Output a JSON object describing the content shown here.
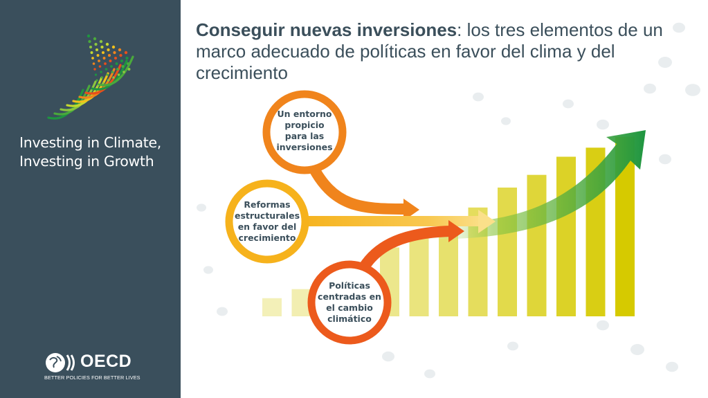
{
  "brand": {
    "line1": "Investing in Climate,",
    "line2": "Investing in Growth"
  },
  "oecd": {
    "name": "OECD",
    "tagline": "BETTER POLICIES FOR BETTER LIVES"
  },
  "title": {
    "bold": "Conseguir nuevas inversiones",
    "rest": ": los tres elementos de un marco adecuado de políticas en favor del clima y del crecimiento"
  },
  "diagram": {
    "elements": [
      {
        "id": "entorno",
        "label": "Un entorno propicio para las inversiones",
        "color": "#f0841c"
      },
      {
        "id": "reformas",
        "label": "Reformas estructurales en favor del crecimiento",
        "color": "#f6b21c"
      },
      {
        "id": "politicas",
        "label": "Políticas centradas en el cambio climático",
        "color": "#ec5a1c"
      }
    ],
    "bar_levels": [
      0.1,
      0.15,
      0.25,
      0.3,
      0.38,
      0.43,
      0.52,
      0.6,
      0.71,
      0.78,
      0.88,
      0.93,
      0.99
    ],
    "colors": {
      "sidebar": "#3a4f5c",
      "arrow_green": "#2e9a3e",
      "bars_light": "#f3f0b8",
      "bars_dark": "#d6ca00"
    }
  }
}
